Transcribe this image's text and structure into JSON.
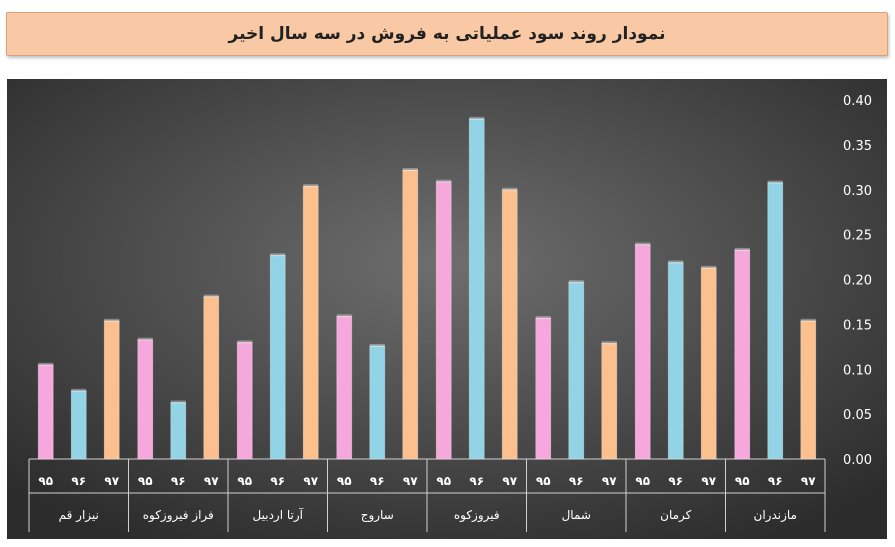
{
  "title": "نمودار روند سود عملیاتی به فروش در سه سال اخیر",
  "chart_data": {
    "type": "bar",
    "title": "نمودار روند سود عملیاتی به فروش در سه سال اخیر",
    "xlabel": "",
    "ylabel": "",
    "ylim": [
      0,
      0.4
    ],
    "yticks": [
      "0.00",
      "0.05",
      "0.10",
      "0.15",
      "0.20",
      "0.25",
      "0.30",
      "0.35",
      "0.40"
    ],
    "grid": false,
    "legend": "none",
    "sub_labels": [
      "۹۵",
      "۹۶",
      "۹۷"
    ],
    "colors": [
      "#f6a8dc",
      "#92d3e6",
      "#fbc08d"
    ],
    "groups": [
      {
        "name": "نیزار قم",
        "values": [
          0.105,
          0.076,
          0.154
        ]
      },
      {
        "name": "فراز فیروزکوه",
        "values": [
          0.133,
          0.063,
          0.181
        ]
      },
      {
        "name": "آرتا اردبیل",
        "values": [
          0.13,
          0.227,
          0.304
        ]
      },
      {
        "name": "ساروج",
        "values": [
          0.159,
          0.126,
          0.322
        ]
      },
      {
        "name": "فیروزکوه",
        "values": [
          0.309,
          0.379,
          0.3
        ]
      },
      {
        "name": "شمال",
        "values": [
          0.157,
          0.197,
          0.129
        ]
      },
      {
        "name": "کرمان",
        "values": [
          0.239,
          0.219,
          0.213
        ]
      },
      {
        "name": "مازندران",
        "values": [
          0.233,
          0.308,
          0.154
        ]
      }
    ]
  }
}
